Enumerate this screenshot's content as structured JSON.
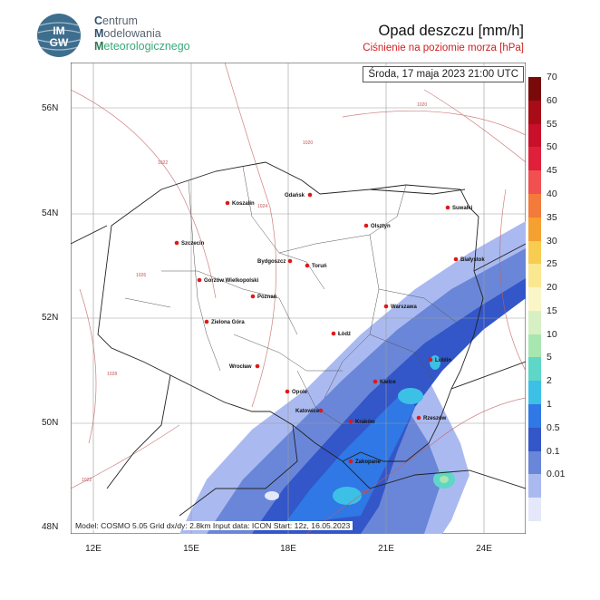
{
  "header": {
    "org_lines": [
      "Centrum",
      "Modelowania",
      "Meteorologicznego"
    ],
    "logo_text_top": "IM",
    "logo_text_bottom": "GW",
    "title": "Opad deszczu [mm/h]",
    "subtitle": "Ciśnienie na poziomie morza [hPa]"
  },
  "map": {
    "timestamp": "Środa, 17 maja 2023 21:00 UTC",
    "model_info": "Model: COSMO 5.05  Grid dx/dy: 2.8km  Input data: ICON  Start: 12z, 16.05.2023",
    "lat_labels": [
      "56N",
      "54N",
      "52N",
      "50N",
      "48N"
    ],
    "lon_labels": [
      "12E",
      "15E",
      "18E",
      "21E",
      "24E"
    ],
    "cities": [
      {
        "name": "Gdańsk"
      },
      {
        "name": "Koszalin"
      },
      {
        "name": "Suwałki"
      },
      {
        "name": "Olsztyn"
      },
      {
        "name": "Szczecin"
      },
      {
        "name": "Bydgoszcz"
      },
      {
        "name": "Toruń"
      },
      {
        "name": "Białystok"
      },
      {
        "name": "Gorzów Wielkopolski"
      },
      {
        "name": "Poznań"
      },
      {
        "name": "Warszawa"
      },
      {
        "name": "Zielona Góra"
      },
      {
        "name": "Łódź"
      },
      {
        "name": "Wrocław"
      },
      {
        "name": "Lublin"
      },
      {
        "name": "Kielce"
      },
      {
        "name": "Opole"
      },
      {
        "name": "Katowice"
      },
      {
        "name": "Kraków"
      },
      {
        "name": "Rzeszów"
      },
      {
        "name": "Zakopane"
      }
    ],
    "isobar_labels": [
      "1020",
      "1022",
      "1024",
      "1026",
      "1028",
      "1022",
      "1020",
      "1018"
    ]
  },
  "colorbar": {
    "labels": [
      "70",
      "60",
      "55",
      "50",
      "45",
      "40",
      "35",
      "30",
      "25",
      "20",
      "15",
      "10",
      "5",
      "2",
      "1",
      "0.5",
      "0.1",
      "0.01"
    ],
    "colors": [
      "#7a0a0a",
      "#a80c16",
      "#c8102a",
      "#e0203a",
      "#f05050",
      "#f27a3a",
      "#f5a030",
      "#f8cc50",
      "#fae890",
      "#fbf6c8",
      "#d6f0c4",
      "#a8e6b0",
      "#5ed6c8",
      "#3cc0e6",
      "#2f78e6",
      "#3356c8",
      "#6a86d8",
      "#aabaf0",
      "#e4e8fa"
    ]
  }
}
